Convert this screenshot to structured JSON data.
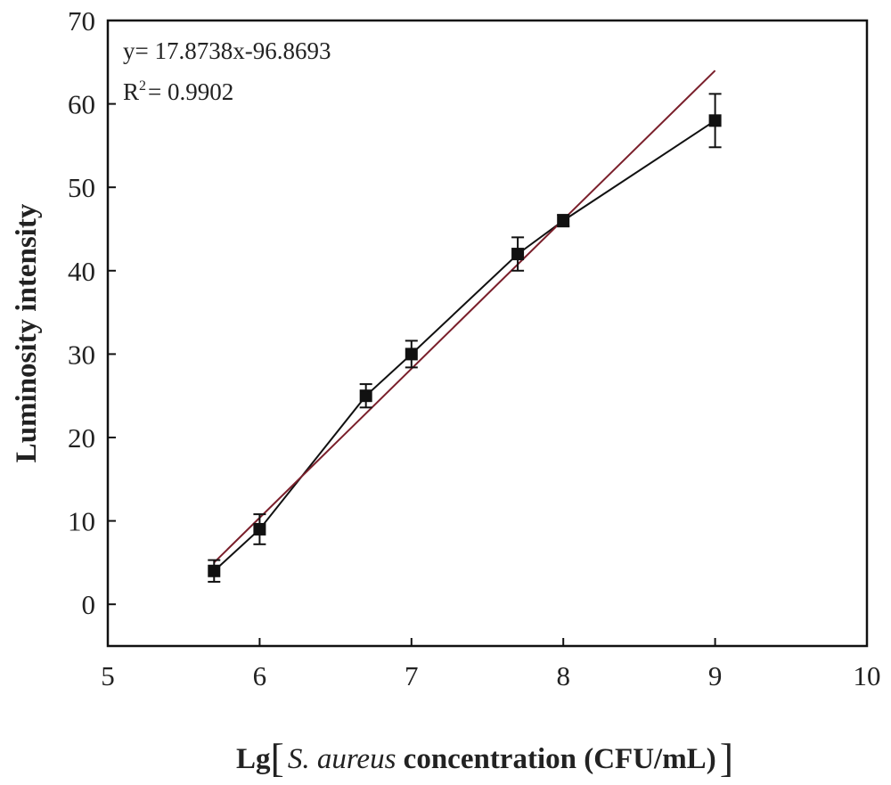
{
  "chart_data": {
    "type": "scatter",
    "xlabel": {
      "prefix": "Lg",
      "species": "S. aureus",
      "rest": " concentration (CFU/mL)"
    },
    "ylabel": "Luminosity intensity",
    "xlim": [
      5,
      10
    ],
    "ylim": [
      -5,
      70
    ],
    "x_ticks": [
      5,
      6,
      7,
      8,
      9,
      10
    ],
    "y_ticks": [
      0,
      10,
      20,
      30,
      40,
      50,
      60,
      70
    ],
    "grid": false,
    "series": [
      {
        "x": [
          5.7,
          6.0,
          6.7,
          7.0,
          7.7,
          8.0,
          9.0
        ],
        "y": [
          4,
          9,
          25,
          30,
          42,
          46,
          58
        ],
        "error": [
          1.3,
          1.8,
          1.4,
          1.6,
          2.0,
          0.7,
          3.2
        ],
        "marker": "square",
        "color": "#111111"
      }
    ],
    "fit": {
      "slope": 17.8738,
      "intercept": -96.8693,
      "x_range": [
        5.7,
        9.0
      ],
      "color": "#7a1f2b"
    },
    "annotations": {
      "equation": "y= 17.8738x-96.8693",
      "r2_label": "R",
      "r2_sup": "2",
      "r2_value": "= 0.9902"
    }
  }
}
